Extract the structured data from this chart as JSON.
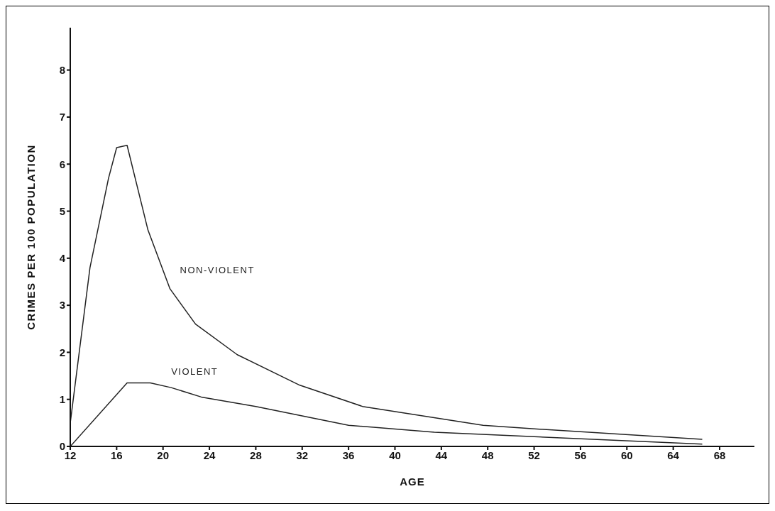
{
  "chart_data": {
    "type": "line",
    "xlabel": "AGE",
    "ylabel": "CRIMES  PER  100  POPULATION",
    "xlim": [
      12,
      71
    ],
    "xticks": [
      12,
      16,
      20,
      24,
      28,
      32,
      36,
      40,
      44,
      48,
      52,
      56,
      60,
      64,
      68
    ],
    "ylim": [
      0,
      8.9
    ],
    "yticks": [
      0,
      1,
      2,
      3,
      4,
      5,
      6,
      7,
      8
    ],
    "grid": false,
    "legend": false,
    "marker": "none",
    "line_style": "solid",
    "series": [
      {
        "name": "NON-VIOLENT",
        "color": "#222222",
        "x": [
          12,
          13.7,
          15.3,
          16,
          16.9,
          18.7,
          20.6,
          22.8,
          26.4,
          31.8,
          37.2,
          47.6,
          51.6,
          66.5
        ],
        "values": [
          0.5,
          3.8,
          5.7,
          6.35,
          6.4,
          4.6,
          3.35,
          2.6,
          1.95,
          1.3,
          0.85,
          0.45,
          0.38,
          0.15
        ]
      },
      {
        "name": "VIOLENT",
        "color": "#222222",
        "x": [
          12,
          16.9,
          18.9,
          20.7,
          23.3,
          28,
          36,
          43.4,
          66.5
        ],
        "values": [
          0,
          1.35,
          1.35,
          1.25,
          1.05,
          0.85,
          0.45,
          0.3,
          0.05
        ]
      }
    ]
  }
}
